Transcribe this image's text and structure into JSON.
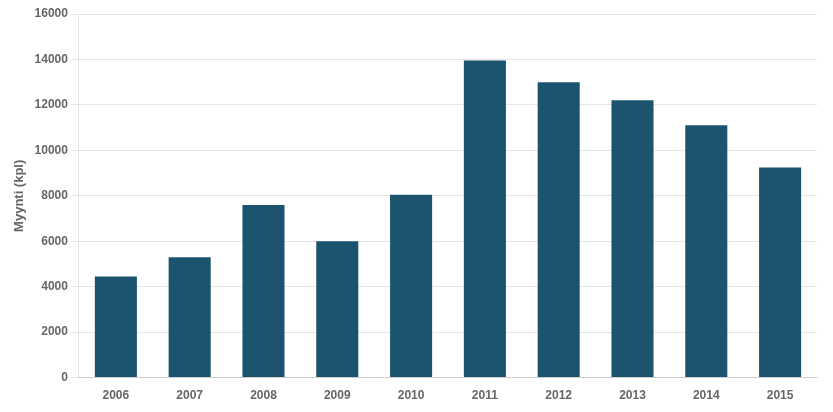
{
  "chart_data": {
    "type": "bar",
    "categories": [
      "2006",
      "2007",
      "2008",
      "2009",
      "2010",
      "2011",
      "2012",
      "2013",
      "2014",
      "2015"
    ],
    "values": [
      4450,
      5300,
      7600,
      6000,
      8050,
      13950,
      13000,
      12200,
      11100,
      9250
    ],
    "color": "#1c5470",
    "ylabel": "Myynti (kpl)",
    "ylim": [
      0,
      16000
    ],
    "yticks": [
      0,
      2000,
      4000,
      6000,
      8000,
      10000,
      12000,
      14000,
      16000
    ],
    "grid": true
  }
}
